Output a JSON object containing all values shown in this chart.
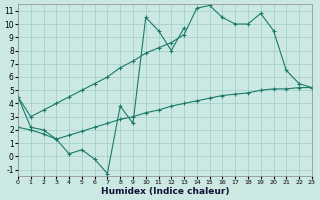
{
  "xlabel": "Humidex (Indice chaleur)",
  "bg_color": "#cce8e3",
  "grid_color": "#a0cec9",
  "line_color": "#1a7a6a",
  "xlim": [
    0,
    23
  ],
  "ylim": [
    -1.5,
    11.5
  ],
  "xticks": [
    0,
    1,
    2,
    3,
    4,
    5,
    6,
    7,
    8,
    9,
    10,
    11,
    12,
    13,
    14,
    15,
    16,
    17,
    18,
    19,
    20,
    21,
    22,
    23
  ],
  "yticks": [
    -1,
    0,
    1,
    2,
    3,
    4,
    5,
    6,
    7,
    8,
    9,
    10,
    11
  ],
  "line_zigzag_x": [
    0,
    1,
    2,
    3,
    4,
    5,
    6,
    7,
    8,
    9,
    10,
    11,
    12,
    13
  ],
  "line_zigzag_y": [
    4.5,
    2.2,
    2.0,
    1.3,
    0.2,
    0.5,
    -0.2,
    -1.3,
    3.8,
    2.5,
    10.5,
    9.5,
    8.0,
    9.7
  ],
  "line_upper_x": [
    0,
    1,
    2,
    3,
    4,
    5,
    6,
    7,
    8,
    9,
    10,
    11,
    12,
    13,
    14,
    15,
    16,
    17,
    18,
    19,
    20,
    21,
    22,
    23
  ],
  "line_upper_y": [
    4.5,
    3.0,
    3.5,
    4.0,
    4.5,
    5.0,
    5.5,
    6.0,
    6.7,
    7.2,
    7.8,
    8.2,
    8.6,
    9.2,
    11.2,
    11.4,
    10.5,
    10.0,
    10.0,
    10.8,
    9.5,
    6.5,
    5.5,
    5.2
  ],
  "line_lower_x": [
    0,
    1,
    2,
    3,
    4,
    5,
    6,
    7,
    8,
    9,
    10,
    11,
    12,
    13,
    14,
    15,
    16,
    17,
    18,
    19,
    20,
    21,
    22,
    23
  ],
  "line_lower_y": [
    2.2,
    2.0,
    1.7,
    1.3,
    1.6,
    1.9,
    2.2,
    2.5,
    2.8,
    3.0,
    3.3,
    3.5,
    3.8,
    4.0,
    4.2,
    4.4,
    4.6,
    4.7,
    4.8,
    5.0,
    5.1,
    5.1,
    5.2,
    5.2
  ]
}
